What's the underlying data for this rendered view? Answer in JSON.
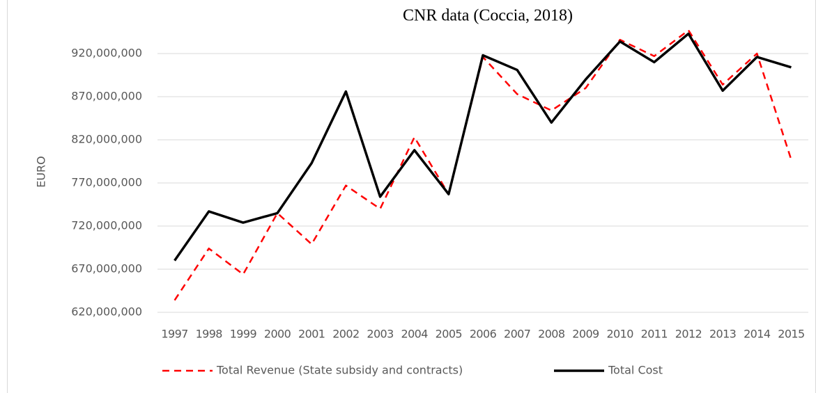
{
  "chart_data": {
    "type": "line",
    "title": "CNR data (Coccia, 2018)",
    "ylabel": "EURO",
    "categories": [
      "1997",
      "1998",
      "1999",
      "2000",
      "2001",
      "2002",
      "2003",
      "2004",
      "2005",
      "2006",
      "2007",
      "2008",
      "2009",
      "2010",
      "2011",
      "2012",
      "2013",
      "2014",
      "2015"
    ],
    "series": [
      {
        "name": "Total Revenue (State subsidy and contracts)",
        "color": "#ff0000",
        "dash": true,
        "values": [
          634000000,
          694000000,
          664000000,
          735000000,
          699000000,
          767000000,
          740000000,
          823000000,
          757000000,
          916000000,
          873000000,
          854000000,
          880000000,
          936000000,
          917000000,
          947000000,
          884000000,
          920000000,
          797000000
        ]
      },
      {
        "name": "Total Cost",
        "color": "#000000",
        "dash": false,
        "values": [
          680000000,
          737000000,
          724000000,
          735000000,
          793000000,
          876000000,
          754000000,
          808000000,
          757000000,
          918000000,
          901000000,
          840000000,
          890000000,
          934000000,
          910000000,
          943000000,
          877000000,
          916000000,
          904000000
        ]
      }
    ],
    "ylim": [
      620000000,
      970000000
    ],
    "yticks": [
      {
        "value": 620000000,
        "label": "620,000,000"
      },
      {
        "value": 670000000,
        "label": "670,000,000"
      },
      {
        "value": 720000000,
        "label": "720,000,000"
      },
      {
        "value": 770000000,
        "label": "770,000,000"
      },
      {
        "value": 820000000,
        "label": "820,000,000"
      },
      {
        "value": 870000000,
        "label": "870,000,000"
      },
      {
        "value": 920000000,
        "label": "920,000,000"
      }
    ],
    "grid": true,
    "legend": "bottom"
  }
}
